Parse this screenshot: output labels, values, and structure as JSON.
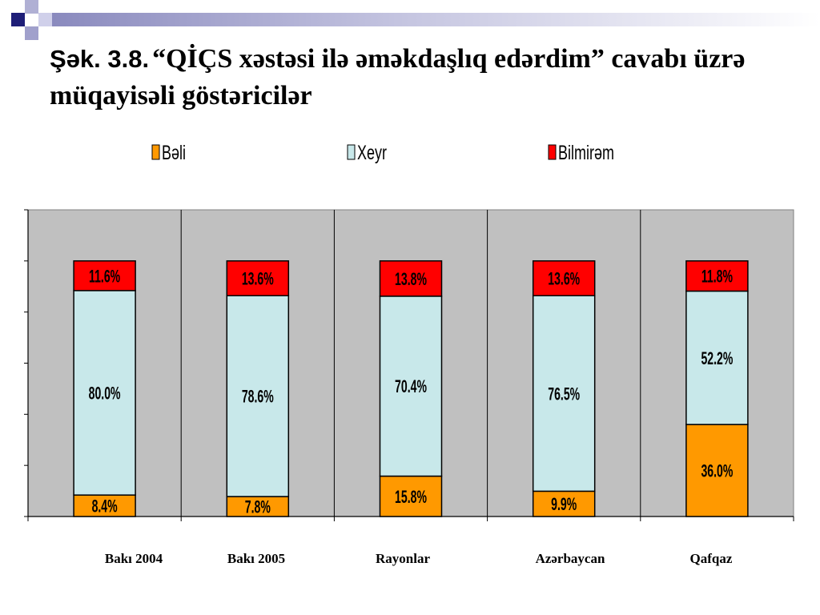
{
  "slide": {
    "figure_number": "Şək. 3.8."
  },
  "colors": {
    "header_accent": "#1E1E78",
    "plot_background": "#C0C0C0"
  },
  "chart_data": {
    "type": "bar",
    "stacked": true,
    "title": "“QİÇS xəstəsi ilə əməkdaşlıq edərdim” cavabı üzrə müqayisəli göstəricilər",
    "categories": [
      "Bakı 2004",
      "Bakı 2005",
      "Rayonlar",
      "Azərbaycan",
      "Qafqaz"
    ],
    "series": [
      {
        "name": "Bəli",
        "color": "#FF9900",
        "values": [
          8.4,
          7.8,
          15.8,
          9.9,
          36.0
        ],
        "labels": [
          "8.4%",
          "7.8%",
          "15.8%",
          "9.9%",
          "36.0%"
        ]
      },
      {
        "name": "Xeyr",
        "color": "#C8E8EA",
        "values": [
          80.0,
          78.6,
          70.4,
          76.5,
          52.2
        ],
        "labels": [
          "80.0%",
          "78.6%",
          "70.4%",
          "76.5%",
          "52.2%"
        ]
      },
      {
        "name": "Bilmirəm",
        "color": "#FF0000",
        "values": [
          11.6,
          13.6,
          13.8,
          13.6,
          11.8
        ],
        "labels": [
          "11.6%",
          "13.6%",
          "13.8%",
          "13.6%",
          "11.8%"
        ]
      }
    ],
    "ylim": [
      0,
      120
    ],
    "ytick_step": 20,
    "ytick_labels_shown": false,
    "grid": false,
    "category_separators": true,
    "legend_position": "top"
  }
}
